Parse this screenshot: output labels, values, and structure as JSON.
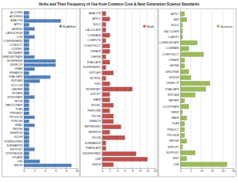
{
  "title": "Verbs and Their Frequency of Use from Common Core & Next Generation Science Standards",
  "chart_data": [
    {
      "type": "bar",
      "orientation": "horizontal",
      "grid": true,
      "legend": "upper right",
      "categories": [
        "ACQUIRE",
        "ADDRESS",
        "ANALYZE",
        "APPLY",
        "ASSESS",
        "CATEGORIZE",
        "CITE",
        "COMPREHEND",
        "CONDUCT",
        "CONVEY",
        "DELINEATE",
        "DEMONSTRATE",
        "DETERMINE",
        "DEVELOP",
        "DRAW",
        "ENHANCE",
        "EVALUATE",
        "EXPLAIN",
        "FOLLOW",
        "GATHER",
        "INITIATE",
        "INTEGRATE",
        "MOVE",
        "PARTICIPATE",
        "PLAN",
        "PRESENT",
        "PRODUCE",
        "PUBLISH",
        "READ",
        "REVISE",
        "REWRITE",
        "SOLVE",
        "STRENGTHEN",
        "SUMMARIZE",
        "SUPPORT",
        "SYNTHESIZE",
        "UPDATE",
        "USE",
        "WRITE"
      ],
      "series": [
        {
          "name": "ELA/Hist",
          "color": "#4f81bd",
          "values": [
            1,
            1,
            7,
            1,
            2,
            1,
            2,
            1,
            1,
            1,
            1,
            2,
            6,
            6,
            2,
            1,
            5,
            3,
            1,
            1,
            1,
            2,
            1,
            1,
            1,
            1,
            2,
            1,
            2,
            1,
            1,
            1,
            1,
            1,
            2,
            1,
            1,
            3,
            9
          ]
        }
      ],
      "xlim": [
        0,
        10
      ],
      "xticks": [
        0,
        2,
        4,
        6,
        8,
        10
      ]
    },
    {
      "type": "bar",
      "orientation": "horizontal",
      "grid": true,
      "legend": "upper right",
      "categories": [
        "ANALYZE",
        "APPLY",
        "BUILD",
        "CALCULATE",
        "COMPARE",
        "COMPUTE",
        "CONSTRUCT",
        "CREATE",
        "DEFINE",
        "EVALUATE",
        "EXPERIMENT",
        "EXPLAIN",
        "EXTEND",
        "FIND",
        "INTERPRET",
        "JUSTIFY",
        "MAKE",
        "MODEL",
        "PERFORM",
        "PROVE",
        "REASON",
        "REPRESENT",
        "REWRITE",
        "SOLVE",
        "SUMMARIZE",
        "TRANSLATE",
        "UNDERSTAND",
        "USE",
        "WRITE"
      ],
      "series": [
        {
          "name": "Math",
          "color": "#c0504d",
          "values": [
            1,
            2,
            1,
            1,
            2,
            1,
            2,
            2,
            1,
            2,
            1,
            3,
            1,
            2,
            8,
            2,
            2,
            3,
            2,
            3,
            3,
            5,
            2,
            6,
            1,
            1,
            9,
            12,
            3
          ]
        }
      ],
      "xlim": [
        0,
        14
      ],
      "xticks": [
        0,
        2,
        4,
        6,
        8,
        10,
        12,
        14
      ]
    },
    {
      "type": "bar",
      "orientation": "horizontal",
      "grid": true,
      "legend": "upper right",
      "categories": [
        "APPLY",
        "ASK",
        "BUILD",
        "CALCULATE",
        "CLARIFY",
        "COMMUNICATE",
        "COMPARE",
        "CONSTRUCT",
        "CREATE",
        "DEFINE",
        "DESCRIBE",
        "DESIGN",
        "DEVELOP",
        "EVALUATE",
        "EXPLAIN",
        "GATHER",
        "ILLUSTRATE",
        "INFER",
        "MAKE",
        "PLAN",
        "PREDICT",
        "PROVIDE",
        "REVISE",
        "SPECIFY",
        "SUPPORT",
        "TEST",
        "USE"
      ],
      "series": [
        {
          "name": "Science",
          "color": "#9bbb59",
          "values": [
            2,
            3,
            1,
            1,
            1,
            8,
            4,
            11,
            2,
            2,
            4,
            5,
            14,
            12,
            7,
            2,
            4,
            1,
            3,
            2,
            2,
            2,
            3,
            1,
            7,
            3,
            22
          ]
        }
      ],
      "xlim": [
        0,
        25
      ],
      "xticks": [
        0,
        5,
        10,
        15,
        20,
        25
      ]
    }
  ]
}
